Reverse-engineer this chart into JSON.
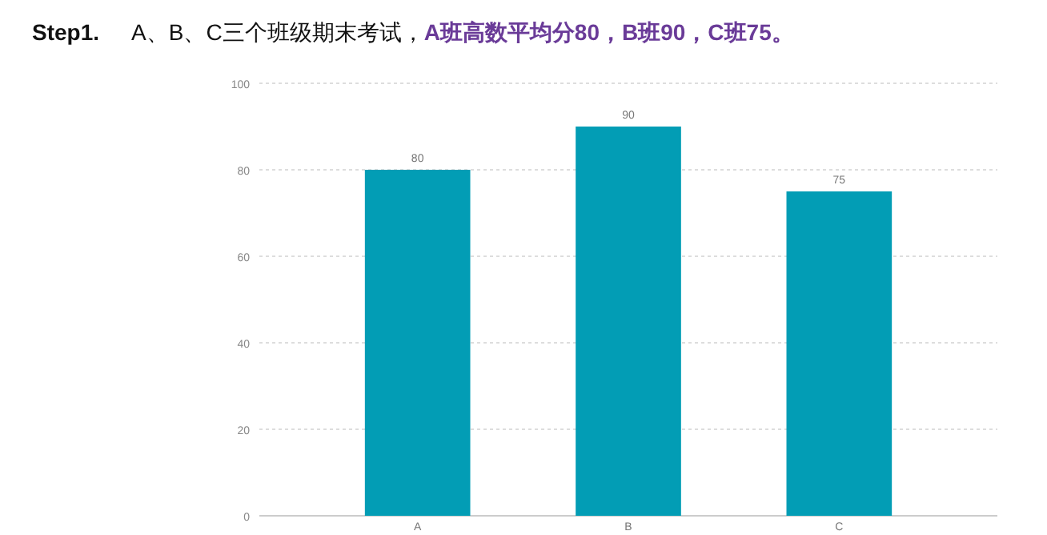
{
  "chart_data": {
    "type": "bar",
    "title": "Step1.",
    "subtitle": "A、B、C三个班级期末考试，",
    "annotations": [
      "A班高数平均分80，B班90，C班75。"
    ],
    "categories": [
      "A",
      "B",
      "C"
    ],
    "values": [
      80,
      90,
      75
    ],
    "color": "#029db5",
    "ylim": [
      0,
      100
    ],
    "yticks": [
      0,
      20,
      40,
      60,
      80,
      100
    ],
    "grid": "y",
    "data_labels": true
  }
}
